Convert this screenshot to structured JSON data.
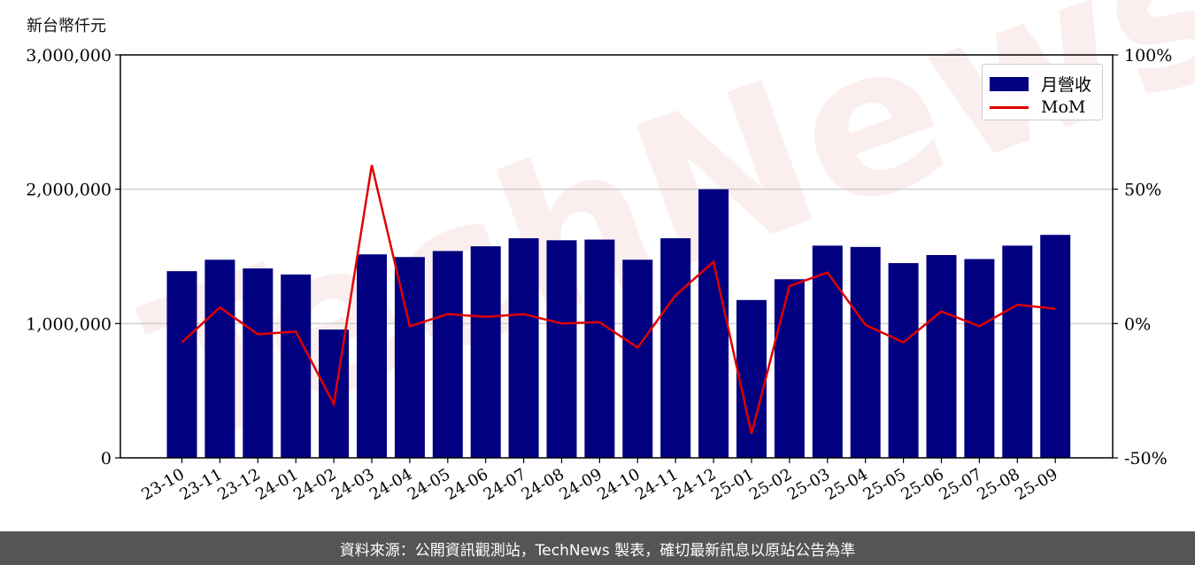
{
  "chart_data": {
    "type": "bar",
    "title": "",
    "y_left_label": "新台幣仟元",
    "categories": [
      "23-10",
      "23-11",
      "23-12",
      "24-01",
      "24-02",
      "24-03",
      "24-04",
      "24-05",
      "24-06",
      "24-07",
      "24-08",
      "24-09",
      "24-10",
      "24-11",
      "24-12",
      "25-01",
      "25-02",
      "25-03",
      "25-04",
      "25-05",
      "25-06",
      "25-07",
      "25-08",
      "25-09"
    ],
    "series": [
      {
        "name": "月營收",
        "type": "bar",
        "axis": "left",
        "color": "#000080",
        "values": [
          1390000,
          1475000,
          1410000,
          1365000,
          955000,
          1515000,
          1495000,
          1540000,
          1575000,
          1635000,
          1620000,
          1625000,
          1475000,
          1635000,
          2000000,
          1175000,
          1330000,
          1580000,
          1570000,
          1450000,
          1510000,
          1480000,
          1580000,
          1660000
        ]
      },
      {
        "name": "MoM",
        "type": "line",
        "axis": "right",
        "color": "#e00000",
        "values": [
          -7,
          6,
          -4,
          -3,
          -30,
          59,
          -1,
          3.5,
          2.5,
          3.5,
          0,
          0.5,
          -9,
          10.5,
          23,
          -41,
          14,
          19,
          -0.5,
          -7,
          4.5,
          -1,
          7,
          5.5
        ]
      }
    ],
    "y_left": {
      "min": 0,
      "max": 3000000,
      "ticks": [
        0,
        1000000,
        2000000,
        3000000
      ],
      "tick_labels": [
        "0",
        "1,000,000",
        "2,000,000",
        "3,000,000"
      ]
    },
    "y_right": {
      "min": -50,
      "max": 100,
      "ticks": [
        -50,
        0,
        50,
        100
      ],
      "tick_labels": [
        "-50%",
        "0%",
        "50%",
        "100%"
      ]
    },
    "grid": "horizontal",
    "legend_position": "top-right"
  },
  "legend": {
    "bar_label": "月營收",
    "line_label": "MoM"
  },
  "watermark": "TechNews",
  "footer": {
    "text": "資料來源：公開資訊觀測站，TechNews 製表，確切最新訊息以原站公告為準"
  }
}
